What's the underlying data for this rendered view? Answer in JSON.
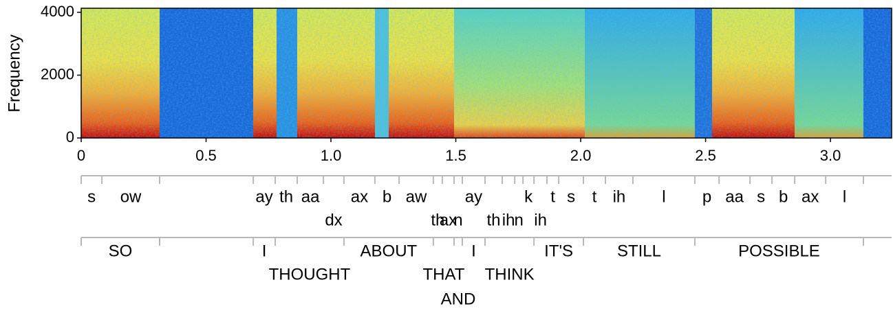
{
  "chart_data": {
    "type": "spectrogram",
    "ylabel": "Frequency",
    "xlim": [
      0,
      3.245
    ],
    "ylim": [
      0,
      4130
    ],
    "xticks": [
      0,
      0.5,
      {
        "value": 1,
        "label": "1.0"
      },
      1.5,
      {
        "value": 2,
        "label": "2.0"
      },
      2.5,
      {
        "value": 3,
        "label": "3.0"
      }
    ],
    "yticks": [
      0,
      2000,
      4000
    ],
    "phones": [
      {
        "label": "s",
        "start": 0,
        "end": 0.083
      },
      {
        "label": "ow",
        "start": 0.083,
        "end": 0.314
      },
      {
        "label": "ay",
        "start": 0.689,
        "end": 0.777
      },
      {
        "label": "th",
        "start": 0.777,
        "end": 0.865
      },
      {
        "label": "aa",
        "start": 0.865,
        "end": 0.97
      },
      {
        "label": "dx",
        "start": 0.97,
        "end": 1.052
      },
      {
        "label": "ax",
        "start": 1.052,
        "end": 1.176
      },
      {
        "label": "b",
        "start": 1.176,
        "end": 1.273
      },
      {
        "label": "aw",
        "start": 1.273,
        "end": 1.41
      },
      {
        "label": "th",
        "start": 1.41,
        "end": 1.446
      },
      {
        "label": "ax",
        "start": 1.446,
        "end": 1.493
      },
      {
        "label": "n",
        "start": 1.493,
        "end": 1.526
      },
      {
        "label": "ay",
        "start": 1.526,
        "end": 1.617
      },
      {
        "label": "th",
        "start": 1.617,
        "end": 1.686
      },
      {
        "label": "ih",
        "start": 1.686,
        "end": 1.736
      },
      {
        "label": "n",
        "start": 1.736,
        "end": 1.769
      },
      {
        "label": "k",
        "start": 1.769,
        "end": 1.813
      },
      {
        "label": "ih",
        "start": 1.813,
        "end": 1.865
      },
      {
        "label": "t",
        "start": 1.865,
        "end": 1.912
      },
      {
        "label": "s",
        "start": 1.912,
        "end": 2.011
      },
      {
        "label": "t",
        "start": 2.011,
        "end": 2.099
      },
      {
        "label": "ih",
        "start": 2.099,
        "end": 2.209
      },
      {
        "label": "l",
        "start": 2.209,
        "end": 2.457
      },
      {
        "label": "p",
        "start": 2.457,
        "end": 2.554
      },
      {
        "label": "aa",
        "start": 2.554,
        "end": 2.678
      },
      {
        "label": "s",
        "start": 2.678,
        "end": 2.766
      },
      {
        "label": "b",
        "start": 2.766,
        "end": 2.857
      },
      {
        "label": "ax",
        "start": 2.857,
        "end": 2.981
      },
      {
        "label": "l",
        "start": 2.981,
        "end": 3.132
      }
    ],
    "words": [
      {
        "label": "SO",
        "start": 0,
        "end": 0.314
      },
      {
        "label": "I",
        "start": 0.689,
        "end": 0.777
      },
      {
        "label": "THOUGHT",
        "start": 0.777,
        "end": 1.052
      },
      {
        "label": "ABOUT",
        "start": 1.052,
        "end": 1.41
      },
      {
        "label": "THAT",
        "start": 1.41,
        "end": 1.493
      },
      {
        "label": "AND",
        "start": 1.493,
        "end": 1.526
      },
      {
        "label": "I",
        "start": 1.526,
        "end": 1.617
      },
      {
        "label": "THINK",
        "start": 1.617,
        "end": 1.813
      },
      {
        "label": "IT'S",
        "start": 1.813,
        "end": 2.011
      },
      {
        "label": "STILL",
        "start": 2.011,
        "end": 2.457
      },
      {
        "label": "POSSIBLE",
        "start": 2.457,
        "end": 3.132
      }
    ]
  }
}
